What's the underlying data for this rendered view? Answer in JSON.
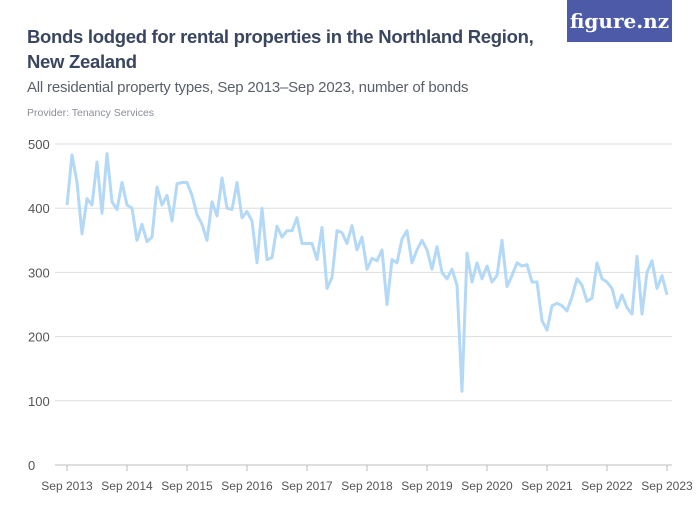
{
  "header": {
    "title": "Bonds lodged for rental properties in the Northland Region, New Zealand",
    "subtitle": "All residential property types, Sep 2013–Sep 2023, number of bonds",
    "provider": "Provider: Tenancy Services",
    "logo": "figure.nz"
  },
  "colors": {
    "line": "#b3d9f7",
    "logo_bg": "#4d5aa8",
    "grid": "#dddddd"
  },
  "chart_data": {
    "type": "line",
    "title": "Bonds lodged for rental properties in the Northland Region, New Zealand",
    "xlabel": "",
    "ylabel": "",
    "start": "Sep 2013",
    "frequency": "monthly",
    "ylim": [
      0,
      500
    ],
    "yticks": [
      0,
      100,
      200,
      300,
      400,
      500
    ],
    "xticks": [
      "Sep 2013",
      "Sep 2014",
      "Sep 2015",
      "Sep 2016",
      "Sep 2017",
      "Sep 2018",
      "Sep 2019",
      "Sep 2020",
      "Sep 2021",
      "Sep 2022",
      "Sep 2023"
    ],
    "grid": true,
    "values": [
      405,
      483,
      440,
      360,
      415,
      405,
      472,
      392,
      485,
      410,
      398,
      440,
      405,
      400,
      350,
      375,
      348,
      355,
      433,
      405,
      420,
      380,
      438,
      440,
      440,
      420,
      390,
      375,
      350,
      410,
      388,
      447,
      400,
      398,
      440,
      385,
      395,
      380,
      315,
      400,
      320,
      323,
      372,
      355,
      365,
      365,
      385,
      345,
      345,
      345,
      320,
      370,
      275,
      292,
      365,
      362,
      345,
      373,
      335,
      355,
      305,
      322,
      318,
      335,
      250,
      320,
      315,
      352,
      365,
      315,
      335,
      350,
      335,
      305,
      340,
      300,
      290,
      305,
      280,
      115,
      330,
      285,
      315,
      290,
      310,
      285,
      295,
      350,
      278,
      295,
      315,
      310,
      312,
      285,
      285,
      225,
      210,
      248,
      252,
      248,
      240,
      262,
      290,
      280,
      255,
      260,
      315,
      290,
      285,
      275,
      245,
      265,
      245,
      235,
      325,
      235,
      300,
      318,
      275,
      295,
      265
    ]
  }
}
